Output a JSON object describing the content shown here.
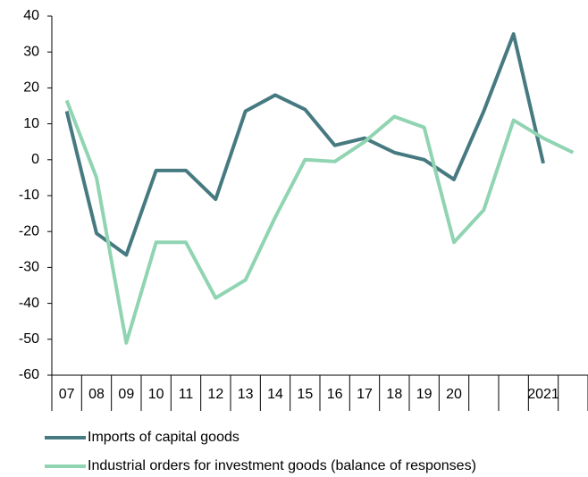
{
  "chart_data": {
    "type": "line",
    "categories": [
      "07",
      "08",
      "09",
      "10",
      "11",
      "12",
      "13",
      "14",
      "15",
      "16",
      "17",
      "18",
      "19",
      "20",
      null,
      null,
      "2021",
      null
    ],
    "series": [
      {
        "name": "Imports of capital goods",
        "color": "#467a80",
        "values": [
          13.5,
          -20.5,
          -26.5,
          -3,
          -3,
          -11,
          13.5,
          18,
          14,
          4,
          6,
          2,
          0,
          -5.5,
          13.5,
          35,
          -1,
          null
        ]
      },
      {
        "name": "Industrial orders for investment goods (balance of responses)",
        "color": "#90d4b2",
        "values": [
          16.5,
          -5,
          -51,
          -23,
          -23,
          -38.5,
          -33.5,
          -16,
          0,
          -0.5,
          5,
          12,
          9,
          -23,
          -14,
          11,
          6,
          2
        ]
      }
    ],
    "ylim": [
      -60,
      40
    ],
    "yticks": [
      -60,
      -50,
      -40,
      -30,
      -20,
      -10,
      0,
      10,
      20,
      30,
      40
    ]
  }
}
